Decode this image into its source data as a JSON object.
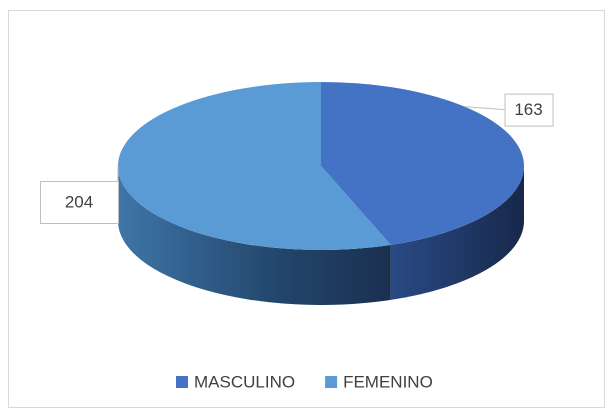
{
  "chart_data": {
    "type": "pie",
    "categories": [
      "MASCULINO",
      "FEMENINO"
    ],
    "values": [
      163,
      204
    ],
    "colors": [
      "#4472c4",
      "#5b9bd5"
    ],
    "legend": "bottom"
  }
}
